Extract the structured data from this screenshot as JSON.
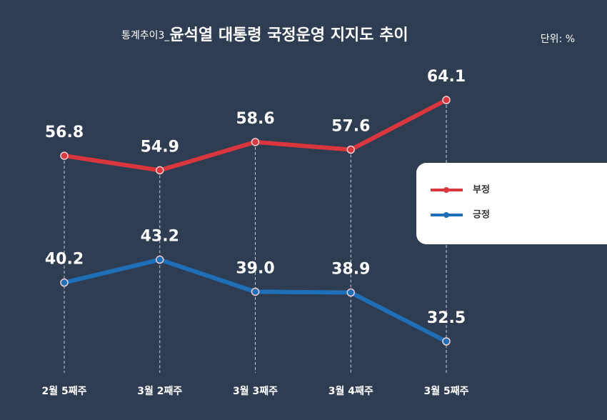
{
  "chart_data": {
    "type": "line",
    "subtitle": "통계추이3_",
    "title": "윤석열 대통령 국정운영 지지도 추이",
    "unit": "단위: %",
    "categories": [
      "2월 5째주",
      "3월 2째주",
      "3월 3째주",
      "3월 4째주",
      "3월 5째주"
    ],
    "series": [
      {
        "name": "부정",
        "color": "#d9363e",
        "values": [
          56.8,
          54.9,
          58.6,
          57.6,
          64.1
        ],
        "value_labels": [
          "56.8",
          "54.9",
          "58.6",
          "57.6",
          "64.1"
        ]
      },
      {
        "name": "긍정",
        "color": "#1e6fb8",
        "values": [
          40.2,
          43.2,
          39.0,
          38.9,
          32.5
        ],
        "value_labels": [
          "40.2",
          "43.2",
          "39.0",
          "38.9",
          "32.5"
        ]
      }
    ]
  }
}
